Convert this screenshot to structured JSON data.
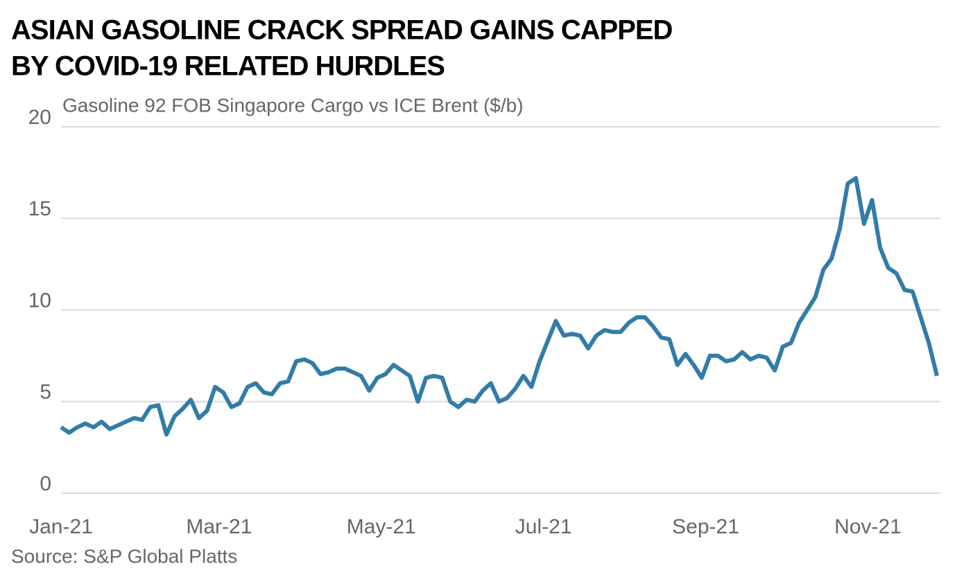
{
  "chart_data": {
    "type": "line",
    "title": [
      "ASIAN GASOLINE CRACK SPREAD GAINS CAPPED",
      "BY COVID-19 RELATED HURDLES"
    ],
    "subtitle": "Gasoline 92 FOB Singapore Cargo vs ICE Brent  ($/b)",
    "source": "Source: S&P Global Platts",
    "categories": [
      "Jan-21",
      null,
      null,
      null,
      null,
      null,
      null,
      null,
      null,
      null,
      null,
      null,
      null,
      null,
      null,
      null,
      null,
      null,
      null,
      null,
      "Mar-21",
      null,
      null,
      null,
      null,
      null,
      null,
      null,
      null,
      null,
      null,
      null,
      null,
      null,
      null,
      null,
      null,
      null,
      null,
      null,
      "May-21",
      null,
      null,
      null,
      null,
      null,
      null,
      null,
      null,
      null,
      null,
      null,
      null,
      null,
      null,
      null,
      null,
      null,
      null,
      null,
      "Jul-21",
      null,
      null,
      null,
      null,
      null,
      null,
      null,
      null,
      null,
      null,
      null,
      null,
      null,
      null,
      null,
      null,
      null,
      null,
      null,
      "Sep-21",
      null,
      null,
      null,
      null,
      null,
      null,
      null,
      null,
      null,
      null,
      null,
      null,
      null,
      null,
      null,
      null,
      null,
      null,
      null,
      "Nov-21",
      null,
      null,
      null,
      null,
      null,
      null,
      null,
      null
    ],
    "series": [
      {
        "name": "Gasoline 92 FOB Singapore Cargo vs ICE Brent",
        "color": "#337ca8",
        "values": [
          3.6,
          3.3,
          3.6,
          3.8,
          3.6,
          3.9,
          3.5,
          3.7,
          3.9,
          4.1,
          4.0,
          4.7,
          4.8,
          3.2,
          4.2,
          4.6,
          5.1,
          4.1,
          4.5,
          5.8,
          5.5,
          4.7,
          4.9,
          5.8,
          6.0,
          5.5,
          5.4,
          6.0,
          6.1,
          7.2,
          7.3,
          7.1,
          6.5,
          6.6,
          6.8,
          6.8,
          6.6,
          6.4,
          5.6,
          6.3,
          6.5,
          7.0,
          6.7,
          6.4,
          5.0,
          6.3,
          6.4,
          6.3,
          5.0,
          4.7,
          5.1,
          5.0,
          5.6,
          6.0,
          5.0,
          5.2,
          5.7,
          6.4,
          5.8,
          7.2,
          8.3,
          9.4,
          8.6,
          8.7,
          8.6,
          7.9,
          8.6,
          8.9,
          8.8,
          8.8,
          9.3,
          9.6,
          9.6,
          9.1,
          8.5,
          8.4,
          7.0,
          7.6,
          7.0,
          6.3,
          7.5,
          7.5,
          7.2,
          7.3,
          7.7,
          7.3,
          7.5,
          7.4,
          6.7,
          8.0,
          8.2,
          9.3,
          10.0,
          10.7,
          12.2,
          12.8,
          14.4,
          16.9,
          17.2,
          14.7,
          16.0,
          13.4,
          12.3,
          12.0,
          11.1,
          11.0,
          9.6,
          8.2,
          6.4
        ]
      }
    ],
    "ylim": [
      0,
      20
    ],
    "yticks": [
      0,
      5,
      10,
      15,
      20
    ],
    "grid": true
  }
}
